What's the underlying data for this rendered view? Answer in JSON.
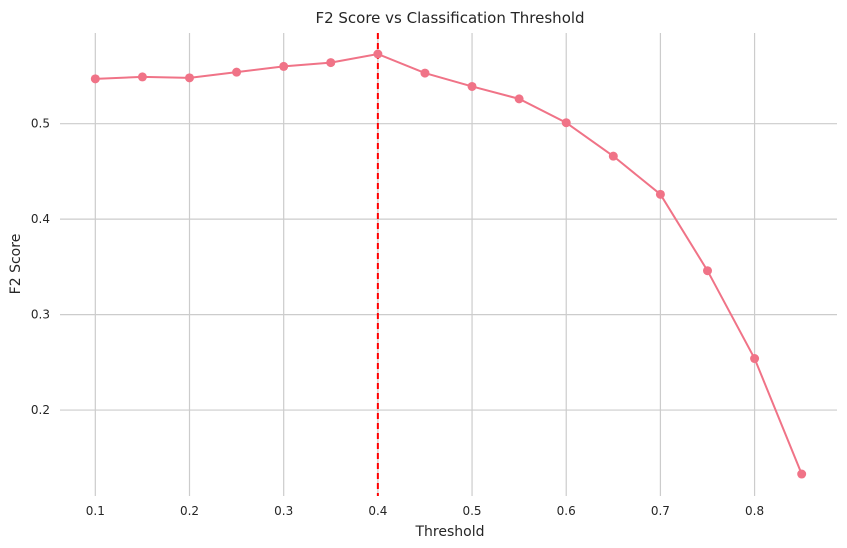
{
  "chart_data": {
    "type": "line",
    "title": "F2 Score vs Classification Threshold",
    "xlabel": "Threshold",
    "ylabel": "F2 Score",
    "xlim": [
      0.0625,
      0.8875
    ],
    "ylim": [
      0.11,
      0.595
    ],
    "xticks": [
      0.1,
      0.2,
      0.3,
      0.4,
      0.5,
      0.6,
      0.7,
      0.8
    ],
    "yticks": [
      0.2,
      0.3,
      0.4,
      0.5
    ],
    "grid": true,
    "series": [
      {
        "x": [
          0.1,
          0.15,
          0.2,
          0.25,
          0.3,
          0.35,
          0.4,
          0.45,
          0.5,
          0.55,
          0.6,
          0.65,
          0.7,
          0.75,
          0.8,
          0.85
        ],
        "values": [
          0.547,
          0.549,
          0.548,
          0.554,
          0.56,
          0.564,
          0.573,
          0.553,
          0.539,
          0.526,
          0.501,
          0.466,
          0.426,
          0.346,
          0.254,
          0.133
        ],
        "color": "#f07387",
        "marker": "circle"
      }
    ],
    "reference_line": {
      "orientation": "vertical",
      "x": 0.4,
      "color": "#ff0000",
      "style": "dashed"
    }
  }
}
